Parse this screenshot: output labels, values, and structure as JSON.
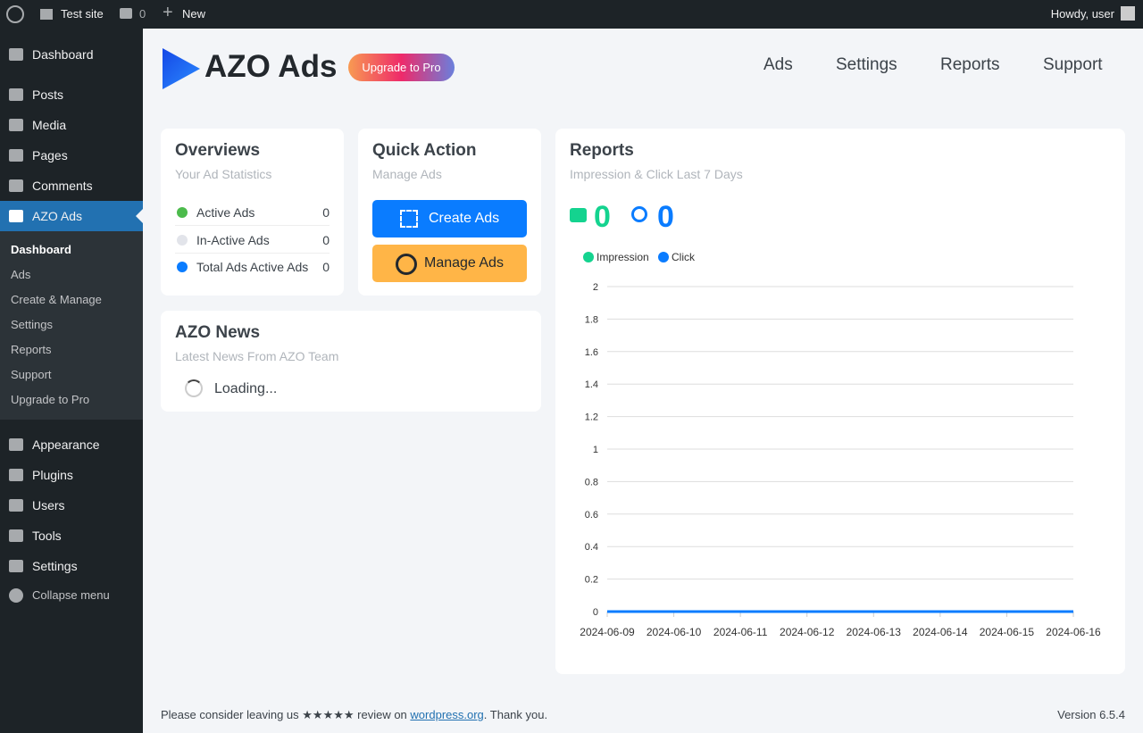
{
  "admin_bar": {
    "site": "Test site",
    "comments": 0,
    "new": "New",
    "howdy": "Howdy, user"
  },
  "menu": {
    "top": [
      "Dashboard",
      "Posts",
      "Media",
      "Pages",
      "Comments",
      "AZO Ads"
    ],
    "submenu": [
      "Dashboard",
      "Ads",
      "Create & Manage",
      "Settings",
      "Reports",
      "Support",
      "Upgrade to Pro"
    ],
    "bottom": [
      "Appearance",
      "Plugins",
      "Users",
      "Tools",
      "Settings"
    ],
    "collapse": "Collapse menu"
  },
  "header": {
    "title": "AZO Ads",
    "upgrade": "Upgrade to Pro",
    "nav": [
      "Ads",
      "Settings",
      "Reports",
      "Support"
    ]
  },
  "overviews": {
    "title": "Overviews",
    "subtitle": "Your Ad Statistics",
    "rows": [
      {
        "label": "Active Ads",
        "value": 0
      },
      {
        "label": "In-Active Ads",
        "value": 0
      },
      {
        "label": "Total Ads Active Ads",
        "value": 0
      }
    ]
  },
  "quick_action": {
    "title": "Quick Action",
    "subtitle": "Manage Ads",
    "buttons": [
      "Create Ads",
      "Manage Ads"
    ]
  },
  "news": {
    "title": "AZO News",
    "subtitle": "Latest News From AZO Team",
    "loading": "Loading..."
  },
  "chart_data": {
    "type": "line",
    "title": "Reports",
    "subtitle": "Impression & Click Last 7 Days",
    "impression_total": 0,
    "click_total": 0,
    "x": [
      "2024-06-09",
      "2024-06-10",
      "2024-06-11",
      "2024-06-12",
      "2024-06-13",
      "2024-06-14",
      "2024-06-15",
      "2024-06-16"
    ],
    "series": [
      {
        "name": "Impression",
        "color": "#14d38f",
        "values": [
          0,
          0,
          0,
          0,
          0,
          0,
          0,
          0
        ]
      },
      {
        "name": "Click",
        "color": "#0a7cff",
        "values": [
          0,
          0,
          0,
          0,
          0,
          0,
          0,
          0
        ]
      }
    ],
    "ylim": [
      0,
      2
    ],
    "yticks": [
      0,
      0.2,
      0.4,
      0.6,
      0.8,
      1,
      1.2,
      1.4,
      1.6,
      1.8,
      2
    ],
    "grid": true
  },
  "footer": {
    "before": "Please consider leaving us ★★★★★ review on ",
    "link": "wordpress.org",
    "after": ". Thank you.",
    "version": "Version 6.5.4"
  }
}
